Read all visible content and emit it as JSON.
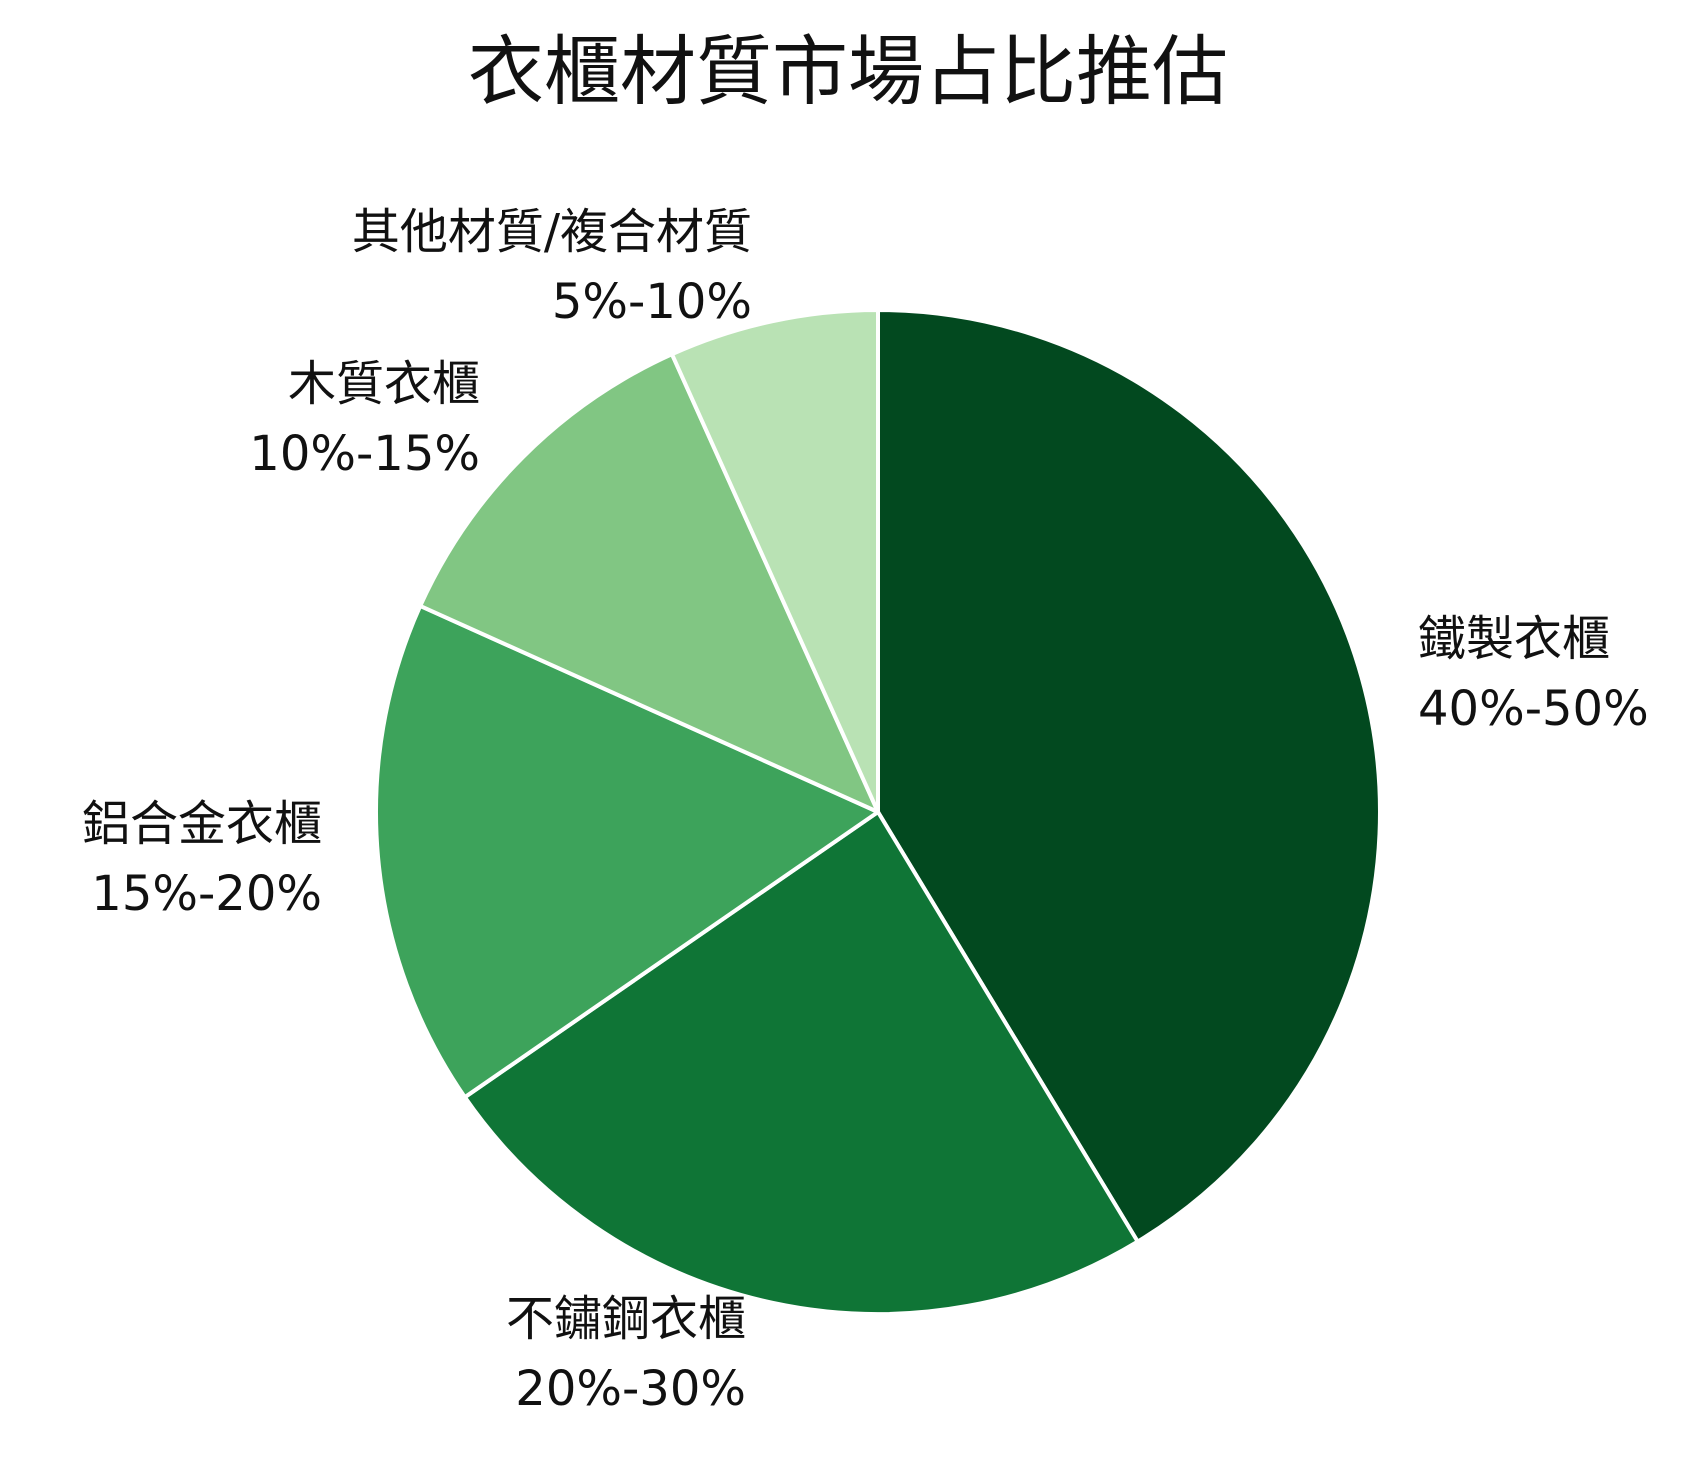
{
  "chart_data": {
    "type": "pie",
    "title": "衣櫃材質市場占比推估",
    "start_angle_deg": 0,
    "direction": "clockwise",
    "legend": "none",
    "slices": [
      {
        "name": "鐵製衣櫃",
        "range_label": "40%-50%",
        "value": 43,
        "color": "#02491F"
      },
      {
        "name": "不鏽鋼衣櫃",
        "range_label": "20%-30%",
        "value": 25,
        "color": "#0F7536"
      },
      {
        "name": "鋁合金衣櫃",
        "range_label": "15%-20%",
        "value": 17,
        "color": "#3DA35B"
      },
      {
        "name": "木質衣櫃",
        "range_label": "10%-15%",
        "value": 12,
        "color": "#81C683"
      },
      {
        "name": "其他材質/複合材質",
        "range_label": "5%-10%",
        "value": 7,
        "color": "#B9E2B4"
      }
    ]
  }
}
